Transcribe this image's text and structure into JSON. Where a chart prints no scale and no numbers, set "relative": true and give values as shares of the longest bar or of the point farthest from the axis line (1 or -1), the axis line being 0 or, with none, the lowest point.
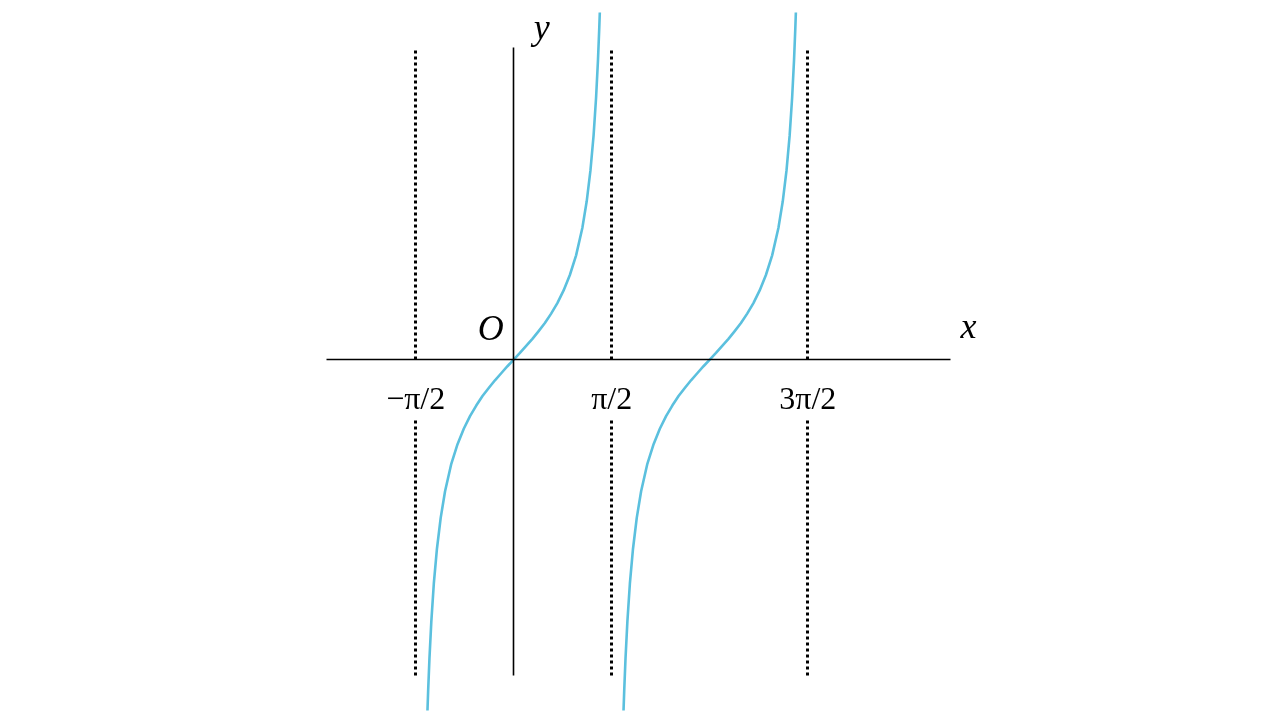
{
  "chart_data": {
    "type": "line",
    "relative": true,
    "line_style": "solid",
    "grid": "x",
    "xlabel": "x",
    "ylabel": "y",
    "annotations": [
      {
        "text": "O",
        "x": 0,
        "y": 0
      }
    ],
    "xlim": [
      -3,
      7
    ],
    "xticks": [
      {
        "value": -1.5708,
        "label": "−π/2"
      },
      {
        "value": 1.5708,
        "label": "π/2"
      },
      {
        "value": 4.7124,
        "label": "3π/2"
      }
    ],
    "series": [
      {
        "color": "#5bc0de",
        "x": [
          -1.382,
          -1.37,
          -1.35,
          -1.32,
          -1.28,
          -1.23,
          -1.17,
          -1.1,
          -1.0,
          -0.9,
          -0.8,
          -0.7,
          -0.6,
          -0.5,
          -0.4,
          -0.3,
          -0.2,
          -0.1,
          0,
          0.1,
          0.2,
          0.3,
          0.4,
          0.5,
          0.6,
          0.7,
          0.8,
          0.9,
          1.0,
          1.1,
          1.17,
          1.23,
          1.28,
          1.32,
          1.35,
          1.37,
          1.38
        ],
        "values": [
          -1,
          -0.939,
          -0.851,
          -0.746,
          -0.638,
          -0.539,
          -0.451,
          -0.375,
          -0.297,
          -0.241,
          -0.197,
          -0.161,
          -0.131,
          -0.104,
          -0.081,
          -0.059,
          -0.039,
          -0.019,
          0,
          0.019,
          0.039,
          0.059,
          0.081,
          0.104,
          0.131,
          0.161,
          0.197,
          0.241,
          0.297,
          0.375,
          0.451,
          0.539,
          0.638,
          0.746,
          0.851,
          0.939,
          0.989
        ]
      },
      {
        "color": "#5bc0de",
        "x": [
          1.76,
          1.772,
          1.792,
          1.822,
          1.862,
          1.912,
          1.972,
          2.042,
          2.142,
          2.242,
          2.342,
          2.442,
          2.542,
          2.642,
          2.742,
          2.842,
          2.942,
          3.042,
          3.142,
          3.242,
          3.342,
          3.442,
          3.542,
          3.642,
          3.742,
          3.842,
          3.942,
          4.042,
          4.142,
          4.242,
          4.312,
          4.372,
          4.422,
          4.462,
          4.492,
          4.512,
          4.522
        ],
        "values": [
          -1,
          -0.939,
          -0.851,
          -0.746,
          -0.638,
          -0.539,
          -0.451,
          -0.375,
          -0.297,
          -0.241,
          -0.197,
          -0.161,
          -0.131,
          -0.104,
          -0.081,
          -0.059,
          -0.039,
          -0.019,
          0,
          0.019,
          0.039,
          0.059,
          0.081,
          0.104,
          0.131,
          0.161,
          0.197,
          0.241,
          0.297,
          0.375,
          0.451,
          0.539,
          0.638,
          0.746,
          0.851,
          0.939,
          0.989
        ]
      }
    ]
  }
}
